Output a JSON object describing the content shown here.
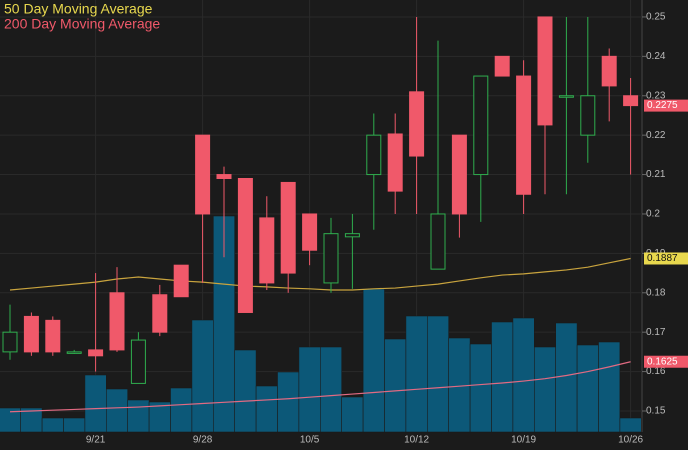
{
  "chart_data": {
    "type": "candlestick",
    "legend": [
      "50 Day Moving Average",
      "200 Day Moving Average"
    ],
    "categories": [
      null,
      null,
      null,
      null,
      "9/21",
      null,
      null,
      null,
      null,
      "9/28",
      null,
      null,
      null,
      null,
      "10/5",
      null,
      null,
      null,
      null,
      "10/12",
      null,
      null,
      null,
      null,
      "10/19",
      null,
      null,
      null,
      null,
      "10/26"
    ],
    "open": [
      0.165,
      0.174,
      0.173,
      0.165,
      0.1655,
      0.18,
      0.157,
      0.1795,
      0.187,
      0.22,
      0.21,
      0.209,
      0.199,
      0.208,
      0.2,
      0.1825,
      0.1942,
      0.21,
      0.2203,
      0.231,
      0.186,
      0.22,
      0.21,
      0.24,
      0.235,
      0.25,
      0.23,
      0.22,
      0.24,
      0.23
    ],
    "high": [
      0.177,
      0.175,
      0.174,
      0.1655,
      0.185,
      0.1865,
      0.17,
      0.182,
      0.187,
      0.22,
      0.212,
      0.209,
      0.2045,
      0.208,
      0.2,
      0.199,
      0.2,
      0.2255,
      0.2255,
      0.25,
      0.244,
      0.22,
      0.235,
      0.24,
      0.239,
      0.25,
      0.25,
      0.25,
      0.242,
      0.2345
    ],
    "low": [
      0.163,
      0.164,
      0.164,
      0.1645,
      0.16,
      0.165,
      0.157,
      0.169,
      0.179,
      0.1825,
      0.189,
      0.175,
      0.1807,
      0.18,
      0.187,
      0.18,
      0.181,
      0.196,
      0.2,
      0.2,
      0.186,
      0.194,
      0.198,
      0.235,
      0.2,
      0.205,
      0.205,
      0.213,
      0.2235,
      0.21
    ],
    "close": [
      0.17,
      0.165,
      0.165,
      0.165,
      0.164,
      0.1655,
      0.168,
      0.17,
      0.179,
      0.2,
      0.209,
      0.175,
      0.1825,
      0.185,
      0.1908,
      0.195,
      0.195,
      0.22,
      0.2058,
      0.2147,
      0.2,
      0.2,
      0.235,
      0.235,
      0.205,
      0.2226,
      0.23,
      0.23,
      0.2325,
      0.2275
    ],
    "up_color": "#2fae4e",
    "down_color": "#f0596a",
    "series": [
      {
        "name": "50 Day Moving Average",
        "color": "#c9a43e",
        "label_color": "#e8d84e",
        "values": [
          0.1807,
          0.1812,
          0.1817,
          0.1822,
          0.1827,
          0.1835,
          0.184,
          0.1835,
          0.183,
          0.1827,
          0.1822,
          0.1817,
          0.1815,
          0.1812,
          0.181,
          0.1807,
          0.1807,
          0.181,
          0.1812,
          0.1817,
          0.1822,
          0.183,
          0.1838,
          0.1845,
          0.1848,
          0.1853,
          0.1858,
          0.1865,
          0.1876,
          0.1887
        ]
      },
      {
        "name": "200 Day Moving Average",
        "color": "#e26a82",
        "label_color": "#f0596a",
        "values": [
          0.1498,
          0.15,
          0.1502,
          0.1504,
          0.1506,
          0.1508,
          0.151,
          0.1513,
          0.1516,
          0.1519,
          0.1522,
          0.1525,
          0.1528,
          0.1531,
          0.1535,
          0.1539,
          0.1543,
          0.1547,
          0.1551,
          0.1555,
          0.1559,
          0.1563,
          0.1567,
          0.1571,
          0.1576,
          0.1582,
          0.159,
          0.16,
          0.1612,
          0.1625
        ]
      }
    ],
    "volume": [
      24,
      24,
      14,
      14,
      57,
      43,
      32,
      30,
      44,
      112,
      216,
      82,
      46,
      60,
      85,
      85,
      35,
      143,
      93,
      116,
      116,
      94,
      88,
      110,
      114,
      85,
      109,
      87,
      90,
      14
    ],
    "volume_color": "#0c5878",
    "volume_lim": [
      0,
      250
    ],
    "ylim": [
      0.1401,
      0.2543
    ],
    "yticks": [
      0.15,
      0.16,
      0.17,
      0.18,
      0.19,
      0.2,
      0.21,
      0.22,
      0.23,
      0.24,
      0.25
    ],
    "grid": true
  }
}
